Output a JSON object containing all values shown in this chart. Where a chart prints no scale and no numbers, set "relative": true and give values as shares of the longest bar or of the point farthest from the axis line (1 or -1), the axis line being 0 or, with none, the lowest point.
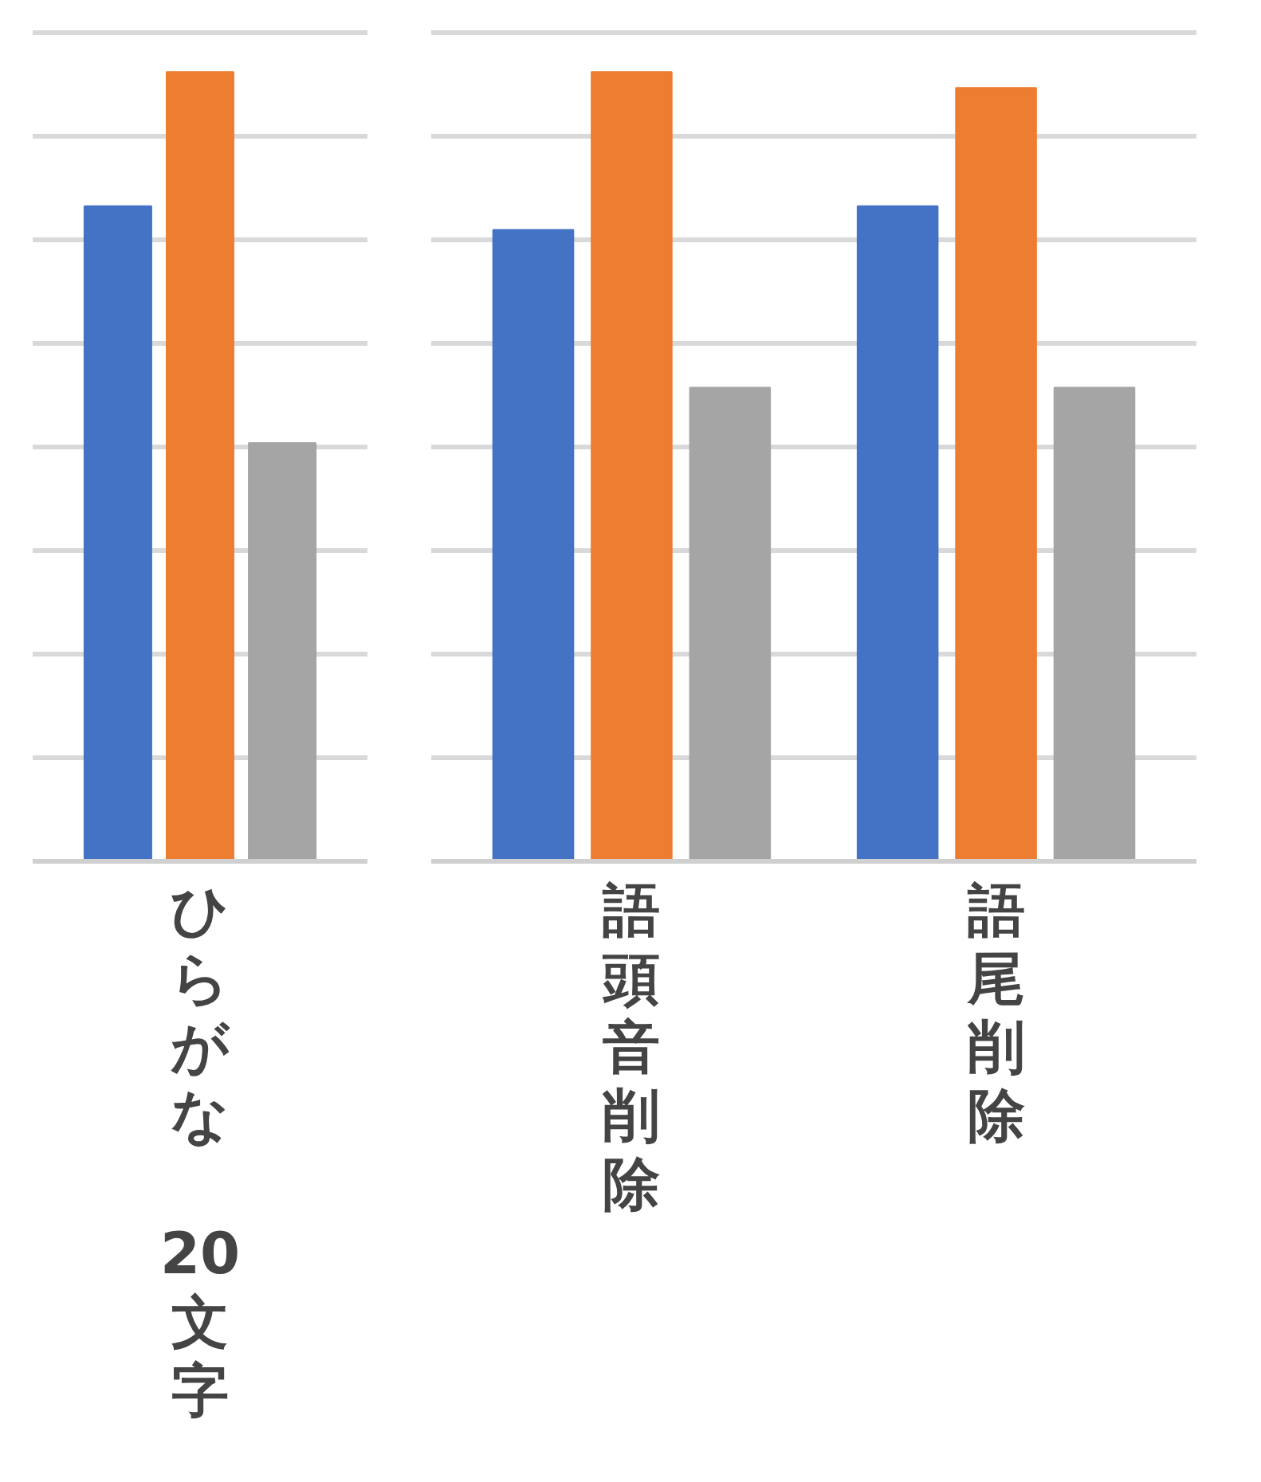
{
  "chart_data": [
    {
      "type": "bar",
      "relative": true,
      "grid": "y",
      "categories": [
        "ひらがな 20文字"
      ],
      "series": [
        {
          "color": "#4472c4",
          "values": [
            0.83
          ]
        },
        {
          "color": "#ed7d31",
          "values": [
            1
          ]
        },
        {
          "color": "#a5a5a5",
          "values": [
            0.53
          ]
        }
      ]
    },
    {
      "type": "bar",
      "relative": true,
      "grid": "y",
      "categories": [
        "語頭音削除",
        "語尾削除"
      ],
      "series": [
        {
          "color": "#4472c4",
          "values": [
            0.8,
            0.83
          ]
        },
        {
          "color": "#ed7d31",
          "values": [
            1,
            0.98
          ]
        },
        {
          "color": "#a5a5a5",
          "values": [
            0.6,
            0.6
          ]
        }
      ]
    }
  ]
}
